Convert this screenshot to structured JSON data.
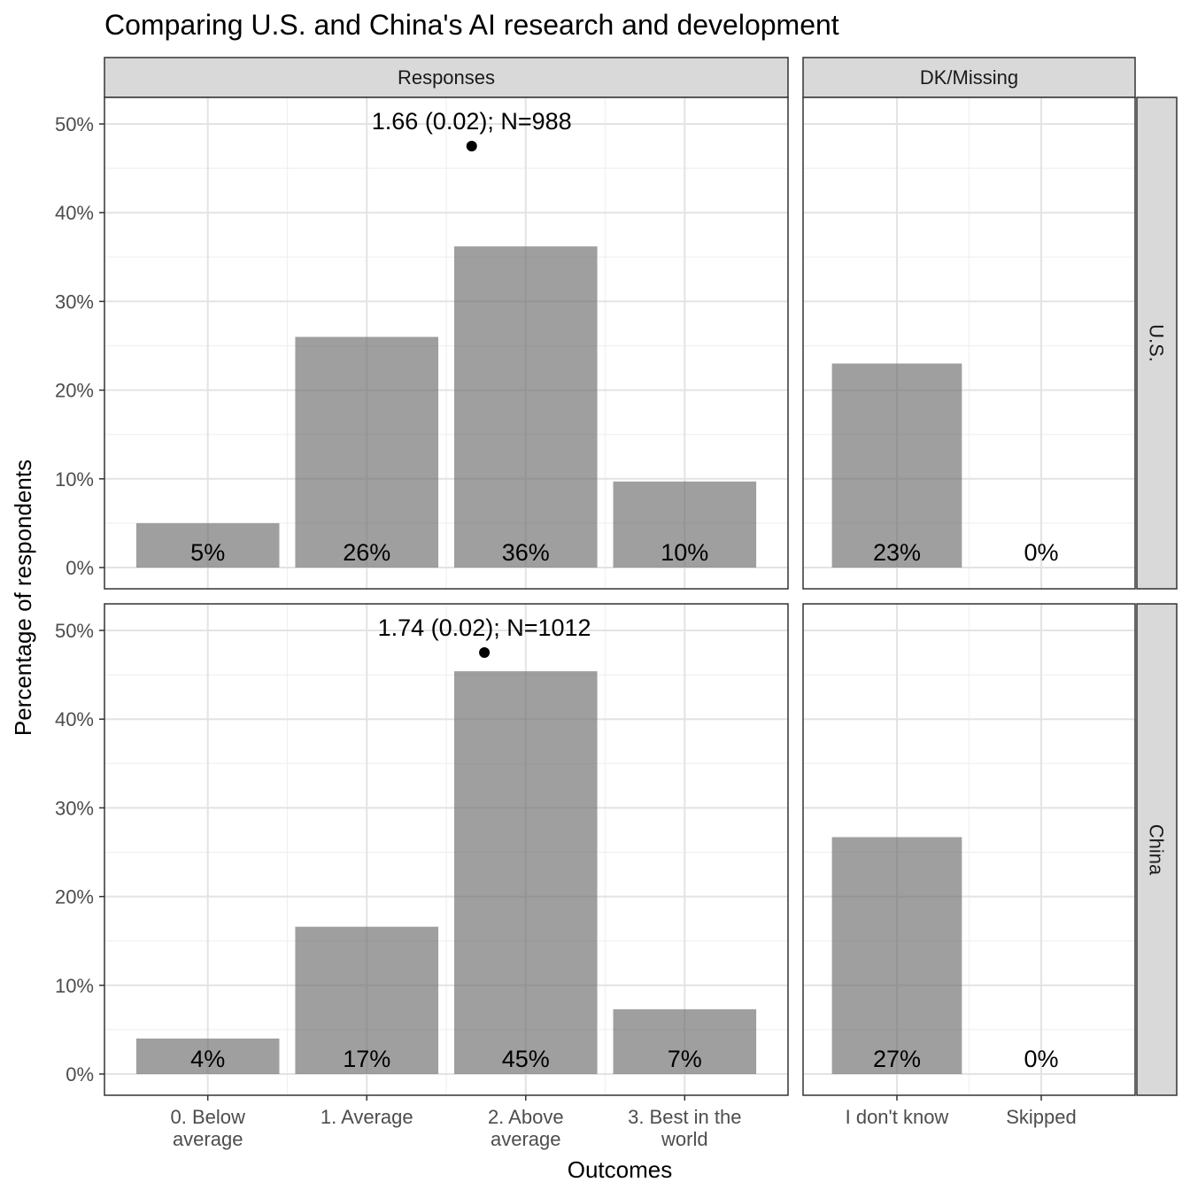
{
  "chart_data": {
    "type": "bar",
    "title": "Comparing U.S. and China's AI research and development",
    "xlabel": "Outcomes",
    "ylabel": "Percentage of respondents",
    "ylim": [
      0,
      52
    ],
    "yticks": [
      0,
      10,
      20,
      30,
      40,
      50
    ],
    "ytick_labels": [
      "0%",
      "10%",
      "20%",
      "30%",
      "40%",
      "50%"
    ],
    "grid": true,
    "column_facets": [
      {
        "label": "Responses",
        "categories": [
          "0. Below average",
          "1. Average",
          "2. Above average",
          "3. Best in the world"
        ],
        "tick_labels": [
          [
            "0. Below",
            "average"
          ],
          [
            "1. Average"
          ],
          [
            "2. Above",
            "average"
          ],
          [
            "3. Best in the",
            "world"
          ]
        ]
      },
      {
        "label": "DK/Missing",
        "categories": [
          "I don't know",
          "Skipped"
        ],
        "tick_labels": [
          [
            "I don't know"
          ],
          [
            "Skipped"
          ]
        ]
      }
    ],
    "row_facets": [
      {
        "label": "U.S.",
        "responses": [
          5.0,
          26.0,
          36.2,
          9.7
        ],
        "response_labels": [
          "5%",
          "26%",
          "36%",
          "10%"
        ],
        "dk": [
          23.0,
          0.0
        ],
        "dk_labels": [
          "23%",
          "0%"
        ],
        "mean": 1.66,
        "mean_label": "1.66 (0.02); N=988",
        "mean_y": 47.5
      },
      {
        "label": "China",
        "responses": [
          4.0,
          16.6,
          45.4,
          7.3
        ],
        "response_labels": [
          "4%",
          "17%",
          "45%",
          "7%"
        ],
        "dk": [
          26.7,
          0.0
        ],
        "dk_labels": [
          "27%",
          "0%"
        ],
        "mean": 1.74,
        "mean_label": "1.74 (0.02); N=1012",
        "mean_y": 47.5
      }
    ]
  }
}
